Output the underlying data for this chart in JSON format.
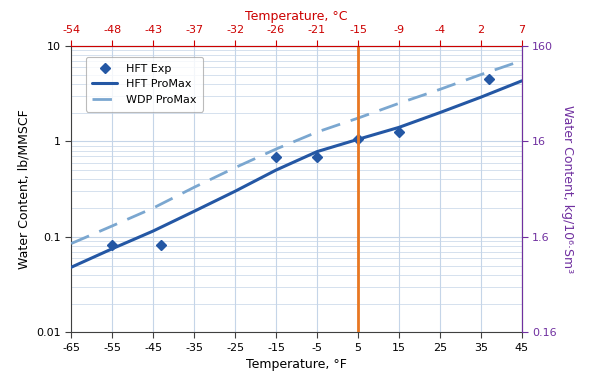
{
  "title_top": "Temperature, °C",
  "xlabel": "Temperature, °F",
  "ylabel_left": "Water Content, lb/MMSCF",
  "ylabel_right": "Water Content, kg/10⁶·Sm³",
  "xlim_F": [
    -65,
    45
  ],
  "ylim": [
    0.01,
    10
  ],
  "ylim_right": [
    0.16,
    160
  ],
  "x_ticks_F": [
    -65,
    -55,
    -45,
    -35,
    -25,
    -15,
    -5,
    5,
    15,
    25,
    35,
    45
  ],
  "x_ticks_C_labels": [
    -54,
    -48,
    -43,
    -37,
    -32,
    -26,
    -21,
    -15,
    -9,
    -4,
    2,
    7
  ],
  "x_ticks_C_pos_F": [
    -65,
    -55,
    -45,
    -35,
    -25,
    -15,
    -5,
    5,
    15,
    25,
    35,
    45
  ],
  "y_ticks_left": [
    0.01,
    0.1,
    1,
    10
  ],
  "y_ticks_right": [
    0.16,
    1.6,
    16,
    160
  ],
  "hft_promax_x": [
    -65,
    -55,
    -45,
    -35,
    -25,
    -15,
    -5,
    5,
    15,
    25,
    35,
    45
  ],
  "hft_promax_y": [
    0.048,
    0.075,
    0.115,
    0.185,
    0.3,
    0.5,
    0.78,
    1.05,
    1.4,
    2.0,
    2.9,
    4.3
  ],
  "wdp_promax_x": [
    -65,
    -55,
    -45,
    -35,
    -25,
    -15,
    -5,
    5,
    15,
    25,
    35,
    45
  ],
  "wdp_promax_y": [
    0.085,
    0.13,
    0.2,
    0.33,
    0.53,
    0.83,
    1.25,
    1.75,
    2.5,
    3.5,
    5.0,
    7.0
  ],
  "hft_exp_x": [
    -55,
    -43,
    -15,
    -5,
    5,
    15,
    37
  ],
  "hft_exp_y": [
    0.082,
    0.082,
    0.69,
    0.69,
    1.05,
    1.25,
    4.5
  ],
  "vline_x": 5,
  "vline_color": "#E87722",
  "line_color": "#2457A4",
  "dashed_color": "#7BA7D0",
  "marker_color": "#2457A4",
  "grid_color": "#C5D5E8",
  "plot_bg_color": "#FFFFFF",
  "fig_bg_color": "#FFFFFF",
  "legend_labels": [
    "HFT Exp",
    "HFT ProMax",
    "WDP ProMax"
  ],
  "top_axis_label_color": "#CC0000",
  "right_axis_label_color": "#7030A0",
  "tick_label_color": "#000000",
  "axis_color": "#404040",
  "title_fontsize": 9,
  "label_fontsize": 9,
  "tick_fontsize": 8
}
